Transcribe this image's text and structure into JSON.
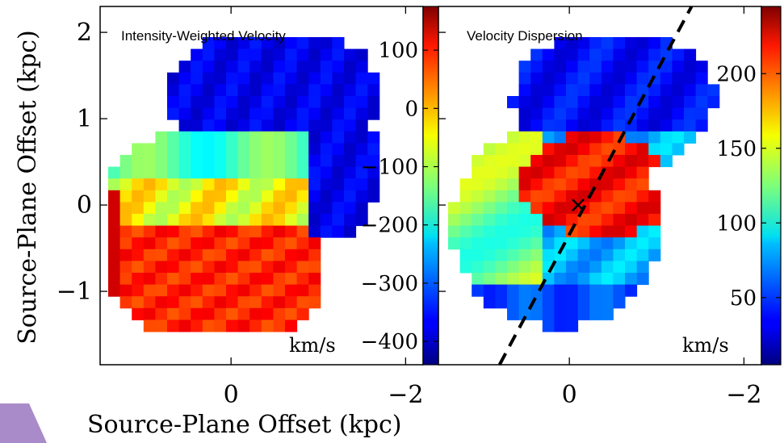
{
  "figure": {
    "ylabel": "Source-Plane Offset (kpc)",
    "xlabel": "Source-Plane Offset (kpc)"
  },
  "colors": {
    "deco_corner": "#a98bc9"
  },
  "chart_data": [
    {
      "type": "heatmap",
      "title": "Intensity-Weighted Velocity",
      "xlim": [
        1.5,
        -2.2
      ],
      "ylim": [
        -1.85,
        2.3
      ],
      "xticks": [
        0,
        -2
      ],
      "xtick_labels": [
        "0",
        "−2"
      ],
      "yticks": [
        2,
        1,
        0,
        -1
      ],
      "ytick_labels": [
        "2",
        "1",
        "0",
        "−1"
      ],
      "colorbar": {
        "range": [
          -440,
          175
        ],
        "ticks": [
          100,
          0,
          -100,
          -200,
          -300,
          -400
        ],
        "tick_labels": [
          "100",
          "0",
          "−100",
          "−200",
          "−300",
          "−400"
        ],
        "unit": "km/s",
        "colormap": "jet"
      },
      "unit_label": "km/s",
      "field_description": "blue (~-380 km/s) upper-right region; green/yellow (~-80 km/s) middle band; orange/red (~+120 km/s) lower-left region"
    },
    {
      "type": "heatmap",
      "title": "Velocity Dispersion",
      "xlim": [
        1.5,
        -2.2
      ],
      "ylim": [
        -1.85,
        2.3
      ],
      "xticks": [
        0,
        -2
      ],
      "xtick_labels": [
        "0",
        "−2"
      ],
      "colorbar": {
        "range": [
          5,
          245
        ],
        "ticks": [
          200,
          150,
          100,
          50
        ],
        "tick_labels": [
          "200",
          "150",
          "100",
          "50"
        ],
        "unit": "km/s",
        "colormap": "jet"
      },
      "unit_label": "km/s",
      "marker": {
        "symbol": "x",
        "x": -0.1,
        "y": 0.0
      },
      "dashed_line": {
        "from": [
          0.8,
          -1.85
        ],
        "to": [
          -1.4,
          2.3
        ]
      },
      "field_description": "red core (~220 km/s) upper-centre-right; green/yellow (~130 km/s) left ring; blue (~50 km/s) outer region"
    }
  ]
}
